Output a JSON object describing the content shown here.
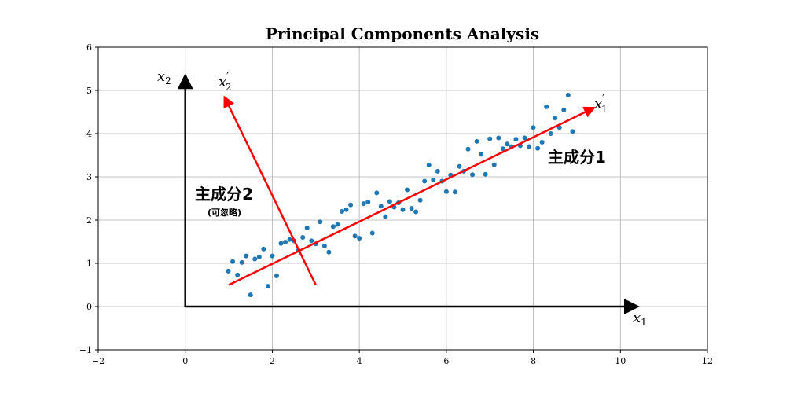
{
  "chart_data": {
    "type": "scatter",
    "title": "Principal Components Analysis",
    "xlim": [
      -2,
      12
    ],
    "ylim": [
      -1,
      6
    ],
    "x_ticks": [
      -2,
      0,
      2,
      4,
      6,
      8,
      10,
      12
    ],
    "y_ticks": [
      -1,
      0,
      1,
      2,
      3,
      4,
      5,
      6
    ],
    "x_tick_labels": [
      "−2",
      "0",
      "2",
      "4",
      "6",
      "8",
      "10",
      "12"
    ],
    "y_tick_labels": [
      "−1",
      "0",
      "1",
      "2",
      "3",
      "4",
      "5",
      "6"
    ],
    "grid": true,
    "point_color": "#1f77b4",
    "arrow_axis_color": "#000000",
    "pc_arrow_color": "#ff0000",
    "axes_arrows": {
      "x1": {
        "from": [
          0,
          0
        ],
        "to": [
          10.4,
          0
        ]
      },
      "x2": {
        "from": [
          0,
          0
        ],
        "to": [
          0,
          5.35
        ]
      }
    },
    "axis_labels": {
      "x1": {
        "base": "x",
        "sub": "1"
      },
      "x2": {
        "base": "x",
        "sub": "2"
      },
      "x1p": {
        "base": "x",
        "sub": "1",
        "sup": "′"
      },
      "x2p": {
        "base": "x",
        "sub": "2",
        "sup": "′"
      }
    },
    "components": [
      {
        "label": "主成分1",
        "from": [
          1.0,
          0.5
        ],
        "to": [
          9.4,
          4.6
        ]
      },
      {
        "label": "主成分2",
        "note": "(可忽略)",
        "from": [
          3.0,
          0.5
        ],
        "to": [
          0.9,
          4.85
        ]
      }
    ],
    "points": [
      [
        0.99,
        0.82
      ],
      [
        1.09,
        1.04
      ],
      [
        1.2,
        0.73
      ],
      [
        1.3,
        1.02
      ],
      [
        1.4,
        1.17
      ],
      [
        1.5,
        0.27
      ],
      [
        1.6,
        1.1
      ],
      [
        1.7,
        1.15
      ],
      [
        1.8,
        1.33
      ],
      [
        1.9,
        0.47
      ],
      [
        2.0,
        1.17
      ],
      [
        2.1,
        0.71
      ],
      [
        2.2,
        1.46
      ],
      [
        2.3,
        1.49
      ],
      [
        2.4,
        1.55
      ],
      [
        2.5,
        1.52
      ],
      [
        2.6,
        1.3
      ],
      [
        2.7,
        1.6
      ],
      [
        2.8,
        1.82
      ],
      [
        2.9,
        1.52
      ],
      [
        3.0,
        1.45
      ],
      [
        3.1,
        1.96
      ],
      [
        3.2,
        1.4
      ],
      [
        3.3,
        1.26
      ],
      [
        3.4,
        1.85
      ],
      [
        3.5,
        1.9
      ],
      [
        3.6,
        2.2
      ],
      [
        3.7,
        2.24
      ],
      [
        3.8,
        2.35
      ],
      [
        3.9,
        1.63
      ],
      [
        4.0,
        1.58
      ],
      [
        4.1,
        2.38
      ],
      [
        4.2,
        2.42
      ],
      [
        4.3,
        1.7
      ],
      [
        4.4,
        2.63
      ],
      [
        4.5,
        2.32
      ],
      [
        4.6,
        2.08
      ],
      [
        4.7,
        2.43
      ],
      [
        4.8,
        2.3
      ],
      [
        4.9,
        2.4
      ],
      [
        5.0,
        2.24
      ],
      [
        5.1,
        2.7
      ],
      [
        5.2,
        2.27
      ],
      [
        5.3,
        2.19
      ],
      [
        5.4,
        2.46
      ],
      [
        5.5,
        2.9
      ],
      [
        5.6,
        3.27
      ],
      [
        5.7,
        2.93
      ],
      [
        5.8,
        3.13
      ],
      [
        5.9,
        2.9
      ],
      [
        6.0,
        2.66
      ],
      [
        6.1,
        3.04
      ],
      [
        6.2,
        2.65
      ],
      [
        6.3,
        3.24
      ],
      [
        6.4,
        3.13
      ],
      [
        6.5,
        3.64
      ],
      [
        6.6,
        3.05
      ],
      [
        6.7,
        3.82
      ],
      [
        6.8,
        3.52
      ],
      [
        6.9,
        3.06
      ],
      [
        7.0,
        3.88
      ],
      [
        7.1,
        3.28
      ],
      [
        7.2,
        3.9
      ],
      [
        7.3,
        3.65
      ],
      [
        7.4,
        3.76
      ],
      [
        7.5,
        3.7
      ],
      [
        7.6,
        3.87
      ],
      [
        7.7,
        3.72
      ],
      [
        7.8,
        3.9
      ],
      [
        7.9,
        3.7
      ],
      [
        8.0,
        4.14
      ],
      [
        8.1,
        3.66
      ],
      [
        8.2,
        3.8
      ],
      [
        8.3,
        4.62
      ],
      [
        8.4,
        4.0
      ],
      [
        8.5,
        4.36
      ],
      [
        8.6,
        4.14
      ],
      [
        8.7,
        4.55
      ],
      [
        8.8,
        4.89
      ],
      [
        8.9,
        4.05
      ]
    ]
  }
}
